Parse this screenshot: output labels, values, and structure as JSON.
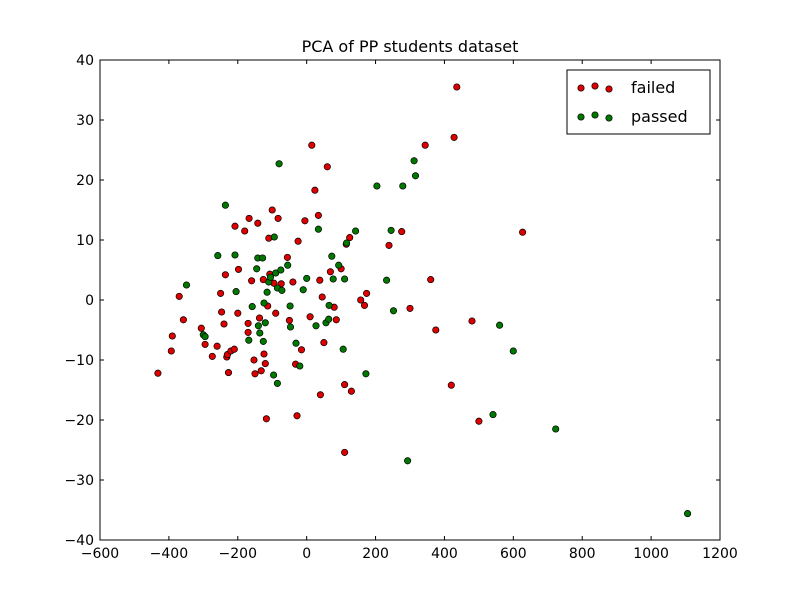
{
  "chart_data": {
    "type": "scatter",
    "title": "PCA of PP students dataset",
    "xlabel": "",
    "ylabel": "",
    "xlim": [
      -600,
      1200
    ],
    "ylim": [
      -40,
      40
    ],
    "xticks": [
      -600,
      -400,
      -200,
      0,
      200,
      400,
      600,
      800,
      1000,
      1200
    ],
    "yticks": [
      -40,
      -30,
      -20,
      -10,
      0,
      10,
      20,
      30,
      40
    ],
    "xtick_labels": [
      "−600",
      "−400",
      "−200",
      "0",
      "200",
      "400",
      "600",
      "800",
      "1000",
      "1200"
    ],
    "ytick_labels": [
      "−40",
      "−30",
      "−20",
      "−10",
      "0",
      "10",
      "20",
      "30",
      "40"
    ],
    "grid": false,
    "legend_position": "top-right",
    "series": [
      {
        "name": "failed",
        "color": "#dd0000",
        "points": [
          [
            -432,
            -12.2
          ],
          [
            -393,
            -8.5
          ],
          [
            -390,
            -6
          ],
          [
            -370,
            0.6
          ],
          [
            -358,
            -3.3
          ],
          [
            -306,
            -4.7
          ],
          [
            -295,
            -7.4
          ],
          [
            -274,
            -9.4
          ],
          [
            -260,
            -7.7
          ],
          [
            -250,
            1.1
          ],
          [
            -247,
            -2
          ],
          [
            -240,
            -4
          ],
          [
            -236,
            4.2
          ],
          [
            -232,
            -9.5
          ],
          [
            -230,
            -9.1
          ],
          [
            -227,
            -12.1
          ],
          [
            -220,
            -8.5
          ],
          [
            -210,
            -8.2
          ],
          [
            -208,
            12.3
          ],
          [
            -200,
            -2.2
          ],
          [
            -198,
            5.1
          ],
          [
            -180,
            11.5
          ],
          [
            -170,
            -3.9
          ],
          [
            -170,
            -5.4
          ],
          [
            -167,
            13.6
          ],
          [
            -160,
            3.2
          ],
          [
            -153,
            -10
          ],
          [
            -150,
            -12.3
          ],
          [
            -142,
            12.8
          ],
          [
            -137,
            -3
          ],
          [
            -132,
            -11.8
          ],
          [
            -126,
            3.4
          ],
          [
            -124,
            -9
          ],
          [
            -120,
            -10.6
          ],
          [
            -117,
            -19.8
          ],
          [
            -113,
            -1
          ],
          [
            -110,
            10.3
          ],
          [
            -107,
            4.3
          ],
          [
            -100,
            15
          ],
          [
            -95,
            2.8
          ],
          [
            -90,
            -2.2
          ],
          [
            -83,
            13.6
          ],
          [
            -74,
            2.7
          ],
          [
            -56,
            7.1
          ],
          [
            -50,
            -3.4
          ],
          [
            -40,
            3
          ],
          [
            -32,
            -10.7
          ],
          [
            -28,
            -19.3
          ],
          [
            -25,
            9.8
          ],
          [
            -15,
            -8.3
          ],
          [
            -5,
            13.2
          ],
          [
            10,
            -2.8
          ],
          [
            15,
            25.8
          ],
          [
            24,
            18.3
          ],
          [
            34,
            14.1
          ],
          [
            38,
            3.3
          ],
          [
            40,
            -15.8
          ],
          [
            45,
            0.5
          ],
          [
            50,
            -7.1
          ],
          [
            60,
            22.2
          ],
          [
            69,
            4.7
          ],
          [
            80,
            -1.2
          ],
          [
            86,
            -3.3
          ],
          [
            100,
            5.2
          ],
          [
            110,
            -14.1
          ],
          [
            110,
            -25.4
          ],
          [
            115,
            9.3
          ],
          [
            125,
            10.4
          ],
          [
            130,
            -15.2
          ],
          [
            157,
            0
          ],
          [
            168,
            -0.9
          ],
          [
            174,
            1.1
          ],
          [
            239,
            9.1
          ],
          [
            276,
            11.4
          ],
          [
            300,
            -1.4
          ],
          [
            344,
            25.8
          ],
          [
            360,
            3.4
          ],
          [
            375,
            -5
          ],
          [
            420,
            -14.2
          ],
          [
            428,
            27.1
          ],
          [
            436,
            35.5
          ],
          [
            480,
            -3.5
          ],
          [
            500,
            -20.2
          ],
          [
            627,
            11.3
          ]
        ]
      },
      {
        "name": "passed",
        "color": "#007700",
        "points": [
          [
            -349,
            2.5
          ],
          [
            -300,
            -5.8
          ],
          [
            -295,
            -6.1
          ],
          [
            -258,
            7.4
          ],
          [
            -236,
            15.8
          ],
          [
            -208,
            7.5
          ],
          [
            -205,
            1.4
          ],
          [
            -168,
            -6.7
          ],
          [
            -158,
            -1.1
          ],
          [
            -145,
            5.2
          ],
          [
            -142,
            7
          ],
          [
            -140,
            -4.3
          ],
          [
            -136,
            -5.5
          ],
          [
            -128,
            7
          ],
          [
            -126,
            -6.9
          ],
          [
            -124,
            -0.5
          ],
          [
            -120,
            -3.8
          ],
          [
            -115,
            1.3
          ],
          [
            -110,
            3
          ],
          [
            -105,
            3.8
          ],
          [
            -96,
            -12.5
          ],
          [
            -94,
            10.5
          ],
          [
            -90,
            4.5
          ],
          [
            -85,
            2
          ],
          [
            -85,
            -13.9
          ],
          [
            -80,
            22.7
          ],
          [
            -75,
            5
          ],
          [
            -72,
            1.6
          ],
          [
            -55,
            5.8
          ],
          [
            -48,
            -1
          ],
          [
            -47,
            -4.5
          ],
          [
            -31,
            -7.2
          ],
          [
            -20,
            -11
          ],
          [
            -10,
            1.7
          ],
          [
            0,
            3.6
          ],
          [
            27,
            -4.3
          ],
          [
            34,
            11.8
          ],
          [
            56,
            -3.8
          ],
          [
            64,
            -3.2
          ],
          [
            65,
            -0.9
          ],
          [
            73,
            7.3
          ],
          [
            77,
            3.5
          ],
          [
            93,
            5.8
          ],
          [
            106,
            -8.2
          ],
          [
            110,
            3.5
          ],
          [
            116,
            9.5
          ],
          [
            142,
            11.5
          ],
          [
            172,
            -12.3
          ],
          [
            204,
            19
          ],
          [
            232,
            3.3
          ],
          [
            245,
            11.6
          ],
          [
            252,
            -1.8
          ],
          [
            279,
            19
          ],
          [
            293,
            -26.8
          ],
          [
            312,
            23.2
          ],
          [
            316,
            20.7
          ],
          [
            541,
            -19.1
          ],
          [
            560,
            -4.2
          ],
          [
            600,
            -8.5
          ],
          [
            723,
            -21.5
          ],
          [
            1106,
            -35.6
          ]
        ]
      }
    ]
  }
}
